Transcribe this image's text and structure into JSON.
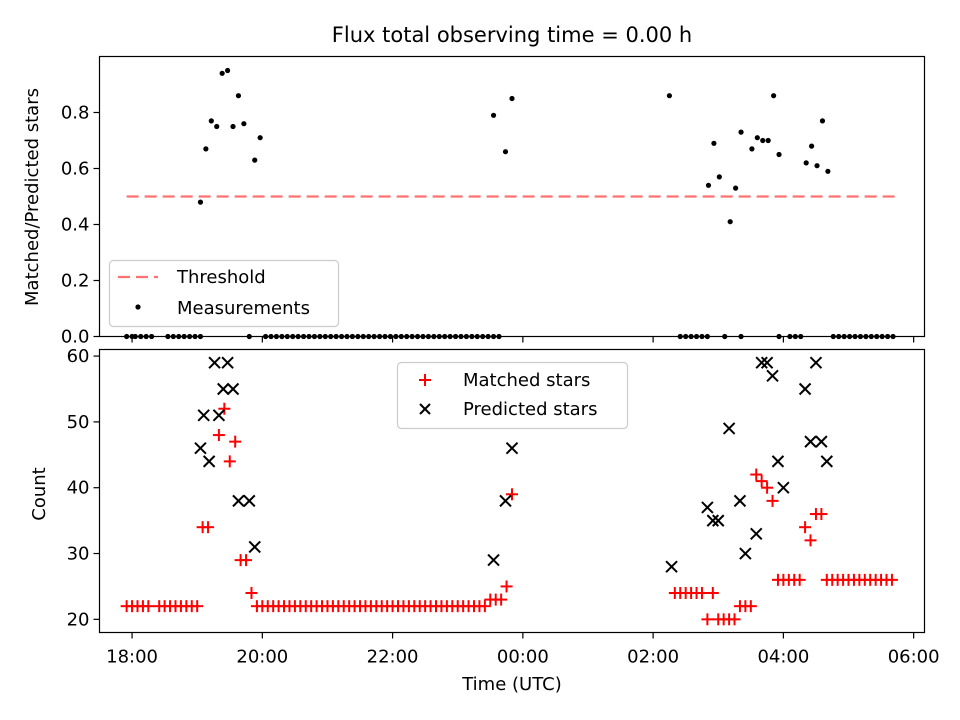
{
  "chart_data": [
    {
      "type": "scatter",
      "title": "Flux total observing time = 0.00 h",
      "xlabel": "",
      "ylabel": "Matched/Predicted stars",
      "xlim": [
        "17:30",
        "06:10"
      ],
      "ylim": [
        0,
        1.0
      ],
      "yticks": [
        0.0,
        0.2,
        0.4,
        0.6,
        0.8
      ],
      "legend_position": "lower-left",
      "threshold": {
        "name": "Threshold",
        "value": 0.5,
        "x_start": "17:55",
        "x_end": "05:45",
        "color": "#ff7070"
      },
      "series": [
        {
          "name": "Measurements",
          "color": "#000000",
          "points": [
            [
              "17:55",
              0
            ],
            [
              "18:00",
              0
            ],
            [
              "18:03",
              0
            ],
            [
              "18:08",
              0
            ],
            [
              "18:13",
              0
            ],
            [
              "18:18",
              0
            ],
            [
              "18:33",
              0
            ],
            [
              "18:38",
              0
            ],
            [
              "18:43",
              0
            ],
            [
              "18:48",
              0
            ],
            [
              "18:53",
              0
            ],
            [
              "18:58",
              0
            ],
            [
              "19:03",
              0
            ],
            [
              "19:03",
              0.48
            ],
            [
              "19:08",
              0.67
            ],
            [
              "19:13",
              0.77
            ],
            [
              "19:18",
              0.75
            ],
            [
              "19:23",
              0.94
            ],
            [
              "19:28",
              0.95
            ],
            [
              "19:33",
              0.75
            ],
            [
              "19:38",
              0.86
            ],
            [
              "19:43",
              0.76
            ],
            [
              "19:53",
              0.63
            ],
            [
              "19:58",
              0.71
            ],
            [
              "19:48",
              0
            ],
            [
              "20:03",
              0
            ],
            [
              "20:08",
              0
            ],
            [
              "20:13",
              0
            ],
            [
              "20:18",
              0
            ],
            [
              "20:23",
              0
            ],
            [
              "20:28",
              0
            ],
            [
              "20:33",
              0
            ],
            [
              "20:38",
              0
            ],
            [
              "20:43",
              0
            ],
            [
              "20:48",
              0
            ],
            [
              "20:53",
              0
            ],
            [
              "20:58",
              0
            ],
            [
              "21:03",
              0
            ],
            [
              "21:08",
              0
            ],
            [
              "21:13",
              0
            ],
            [
              "21:18",
              0
            ],
            [
              "21:23",
              0
            ],
            [
              "21:28",
              0
            ],
            [
              "21:33",
              0
            ],
            [
              "21:38",
              0
            ],
            [
              "21:43",
              0
            ],
            [
              "21:48",
              0
            ],
            [
              "21:53",
              0
            ],
            [
              "21:58",
              0
            ],
            [
              "22:03",
              0
            ],
            [
              "22:08",
              0
            ],
            [
              "22:13",
              0
            ],
            [
              "22:18",
              0
            ],
            [
              "22:23",
              0
            ],
            [
              "22:28",
              0
            ],
            [
              "22:33",
              0
            ],
            [
              "22:38",
              0
            ],
            [
              "22:43",
              0
            ],
            [
              "22:48",
              0
            ],
            [
              "22:53",
              0
            ],
            [
              "22:58",
              0
            ],
            [
              "23:03",
              0
            ],
            [
              "23:08",
              0
            ],
            [
              "23:13",
              0
            ],
            [
              "23:18",
              0
            ],
            [
              "23:23",
              0
            ],
            [
              "23:28",
              0
            ],
            [
              "23:33",
              0
            ],
            [
              "23:38",
              0
            ],
            [
              "23:33",
              0.79
            ],
            [
              "23:44",
              0.66
            ],
            [
              "23:50",
              0.85
            ],
            [
              "02:15",
              0.86
            ],
            [
              "02:25",
              0
            ],
            [
              "02:30",
              0
            ],
            [
              "02:35",
              0
            ],
            [
              "02:40",
              0
            ],
            [
              "02:45",
              0
            ],
            [
              "02:50",
              0
            ],
            [
              "02:51",
              0.54
            ],
            [
              "02:56",
              0.69
            ],
            [
              "03:01",
              0.57
            ],
            [
              "03:06",
              0
            ],
            [
              "03:11",
              0.41
            ],
            [
              "03:16",
              0.53
            ],
            [
              "03:21",
              0.73
            ],
            [
              "03:21",
              0
            ],
            [
              "03:31",
              0.67
            ],
            [
              "03:36",
              0.71
            ],
            [
              "03:41",
              0.7
            ],
            [
              "03:46",
              0.7
            ],
            [
              "03:51",
              0.86
            ],
            [
              "03:56",
              0.65
            ],
            [
              "03:56",
              0
            ],
            [
              "04:06",
              0
            ],
            [
              "04:11",
              0
            ],
            [
              "04:16",
              0
            ],
            [
              "04:21",
              0.62
            ],
            [
              "04:26",
              0.68
            ],
            [
              "04:31",
              0.61
            ],
            [
              "04:36",
              0.77
            ],
            [
              "04:41",
              0.59
            ],
            [
              "04:46",
              0
            ],
            [
              "04:51",
              0
            ],
            [
              "04:56",
              0
            ],
            [
              "05:01",
              0
            ],
            [
              "05:06",
              0
            ],
            [
              "05:11",
              0
            ],
            [
              "05:16",
              0
            ],
            [
              "05:21",
              0
            ],
            [
              "05:26",
              0
            ],
            [
              "05:31",
              0
            ],
            [
              "05:36",
              0
            ],
            [
              "05:41",
              0
            ]
          ]
        }
      ]
    },
    {
      "type": "scatter",
      "title": "",
      "xlabel": "Time (UTC)",
      "ylabel": "Count",
      "xlim": [
        "17:30",
        "06:10"
      ],
      "ylim": [
        18,
        61
      ],
      "yticks": [
        20,
        30,
        40,
        50,
        60
      ],
      "xticks": [
        "18:00",
        "20:00",
        "22:00",
        "00:00",
        "02:00",
        "04:00",
        "06:00"
      ],
      "legend_position": "upper-center",
      "series": [
        {
          "name": "Matched stars",
          "color": "#ff0000",
          "marker": "+",
          "points": [
            [
              "17:55",
              22
            ],
            [
              "18:00",
              22
            ],
            [
              "18:05",
              22
            ],
            [
              "18:10",
              22
            ],
            [
              "18:15",
              22
            ],
            [
              "18:25",
              22
            ],
            [
              "18:30",
              22
            ],
            [
              "18:35",
              22
            ],
            [
              "18:40",
              22
            ],
            [
              "18:45",
              22
            ],
            [
              "18:50",
              22
            ],
            [
              "18:55",
              22
            ],
            [
              "19:00",
              22
            ],
            [
              "19:05",
              34
            ],
            [
              "19:10",
              34
            ],
            [
              "19:20",
              48
            ],
            [
              "19:25",
              52
            ],
            [
              "19:30",
              44
            ],
            [
              "19:35",
              47
            ],
            [
              "19:40",
              29
            ],
            [
              "19:45",
              29
            ],
            [
              "19:50",
              24
            ],
            [
              "19:55",
              22
            ],
            [
              "20:00",
              22
            ],
            [
              "20:05",
              22
            ],
            [
              "20:10",
              22
            ],
            [
              "20:15",
              22
            ],
            [
              "20:20",
              22
            ],
            [
              "20:25",
              22
            ],
            [
              "20:30",
              22
            ],
            [
              "20:35",
              22
            ],
            [
              "20:40",
              22
            ],
            [
              "20:45",
              22
            ],
            [
              "20:50",
              22
            ],
            [
              "20:55",
              22
            ],
            [
              "21:00",
              22
            ],
            [
              "21:05",
              22
            ],
            [
              "21:10",
              22
            ],
            [
              "21:15",
              22
            ],
            [
              "21:20",
              22
            ],
            [
              "21:25",
              22
            ],
            [
              "21:30",
              22
            ],
            [
              "21:35",
              22
            ],
            [
              "21:40",
              22
            ],
            [
              "21:45",
              22
            ],
            [
              "21:50",
              22
            ],
            [
              "21:55",
              22
            ],
            [
              "22:00",
              22
            ],
            [
              "22:05",
              22
            ],
            [
              "22:10",
              22
            ],
            [
              "22:15",
              22
            ],
            [
              "22:20",
              22
            ],
            [
              "22:25",
              22
            ],
            [
              "22:30",
              22
            ],
            [
              "22:35",
              22
            ],
            [
              "22:40",
              22
            ],
            [
              "22:45",
              22
            ],
            [
              "22:50",
              22
            ],
            [
              "22:55",
              22
            ],
            [
              "23:00",
              22
            ],
            [
              "23:05",
              22
            ],
            [
              "23:10",
              22
            ],
            [
              "23:15",
              22
            ],
            [
              "23:20",
              22
            ],
            [
              "23:25",
              22
            ],
            [
              "23:30",
              23
            ],
            [
              "23:35",
              23
            ],
            [
              "23:40",
              23
            ],
            [
              "23:45",
              25
            ],
            [
              "23:50",
              39
            ],
            [
              "02:20",
              24
            ],
            [
              "02:25",
              24
            ],
            [
              "02:30",
              24
            ],
            [
              "02:35",
              24
            ],
            [
              "02:40",
              24
            ],
            [
              "02:45",
              24
            ],
            [
              "02:50",
              20
            ],
            [
              "02:55",
              24
            ],
            [
              "03:00",
              20
            ],
            [
              "03:05",
              20
            ],
            [
              "03:10",
              20
            ],
            [
              "03:15",
              20
            ],
            [
              "03:20",
              22
            ],
            [
              "03:25",
              22
            ],
            [
              "03:30",
              22
            ],
            [
              "03:35",
              42
            ],
            [
              "03:40",
              41
            ],
            [
              "03:45",
              40
            ],
            [
              "03:50",
              38
            ],
            [
              "03:55",
              26
            ],
            [
              "04:00",
              26
            ],
            [
              "04:05",
              26
            ],
            [
              "04:10",
              26
            ],
            [
              "04:15",
              26
            ],
            [
              "04:20",
              34
            ],
            [
              "04:25",
              32
            ],
            [
              "04:30",
              36
            ],
            [
              "04:35",
              36
            ],
            [
              "04:40",
              26
            ],
            [
              "04:45",
              26
            ],
            [
              "04:50",
              26
            ],
            [
              "04:55",
              26
            ],
            [
              "05:00",
              26
            ],
            [
              "05:05",
              26
            ],
            [
              "05:10",
              26
            ],
            [
              "05:15",
              26
            ],
            [
              "05:20",
              26
            ],
            [
              "05:25",
              26
            ],
            [
              "05:30",
              26
            ],
            [
              "05:35",
              26
            ],
            [
              "05:40",
              26
            ]
          ]
        },
        {
          "name": "Predicted stars",
          "color": "#000000",
          "marker": "x",
          "points": [
            [
              "19:03",
              46
            ],
            [
              "19:06",
              51
            ],
            [
              "19:11",
              44
            ],
            [
              "19:16",
              59
            ],
            [
              "19:20",
              51
            ],
            [
              "19:24",
              55
            ],
            [
              "19:28",
              59
            ],
            [
              "19:33",
              55
            ],
            [
              "19:38",
              38
            ],
            [
              "19:48",
              38
            ],
            [
              "19:53",
              31
            ],
            [
              "23:33",
              29
            ],
            [
              "23:44",
              38
            ],
            [
              "23:50",
              46
            ],
            [
              "02:17",
              28
            ],
            [
              "02:50",
              37
            ],
            [
              "02:55",
              35
            ],
            [
              "03:00",
              35
            ],
            [
              "03:10",
              49
            ],
            [
              "03:20",
              38
            ],
            [
              "03:25",
              30
            ],
            [
              "03:35",
              33
            ],
            [
              "03:40",
              59
            ],
            [
              "03:45",
              59
            ],
            [
              "03:50",
              57
            ],
            [
              "03:55",
              44
            ],
            [
              "04:00",
              40
            ],
            [
              "04:20",
              55
            ],
            [
              "04:25",
              47
            ],
            [
              "04:30",
              59
            ],
            [
              "04:35",
              47
            ],
            [
              "04:40",
              44
            ]
          ]
        }
      ]
    }
  ]
}
